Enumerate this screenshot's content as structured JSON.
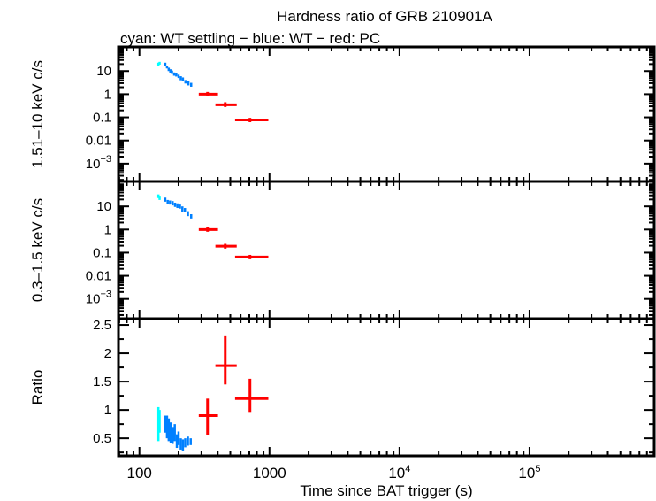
{
  "chart_data": {
    "type": "scatter",
    "title": "Hardness ratio of GRB 210901A",
    "subtitle": "cyan: WT settling − blue: WT − red: PC",
    "xlabel": "Time since BAT trigger (s)",
    "xscale": "log",
    "xlim": [
      69,
      910000
    ],
    "xticks": [
      {
        "v": 100,
        "label": "100"
      },
      {
        "v": 1000,
        "label": "1000"
      },
      {
        "v": 10000,
        "label": "10",
        "sup": "4"
      },
      {
        "v": 100000,
        "label": "10",
        "sup": "5"
      }
    ],
    "colors": {
      "wt_settling": "#00ffff",
      "wt": "#0080ff",
      "pc": "#ff0000"
    },
    "panels": [
      {
        "ylabel": "1.51–10 keV c/s",
        "yscale": "log",
        "ylim": [
          0.00017,
          110
        ],
        "yticks": [
          {
            "v": 10,
            "label": "10"
          },
          {
            "v": 1,
            "label": "1"
          },
          {
            "v": 0.1,
            "label": "0.1"
          },
          {
            "v": 0.01,
            "label": "0.01"
          },
          {
            "v": 0.001,
            "label": "10",
            "sup": "−3"
          }
        ],
        "series": [
          {
            "kind": "wt_settling",
            "points": [
              [
                140,
                20,
                0.06,
                3
              ],
              [
                143,
                22,
                0.06,
                3
              ]
            ]
          },
          {
            "kind": "wt",
            "points": [
              [
                158,
                20,
                0.03,
                3
              ],
              [
                163,
                15,
                0.03,
                2
              ],
              [
                168,
                12,
                0.03,
                2
              ],
              [
                173,
                10,
                0.03,
                2
              ],
              [
                178,
                9,
                0.03,
                1.5
              ],
              [
                185,
                7.5,
                0.03,
                1.2
              ],
              [
                192,
                7,
                0.03,
                1.2
              ],
              [
                200,
                6,
                0.03,
                1
              ],
              [
                208,
                5,
                0.03,
                1
              ],
              [
                216,
                4.5,
                0.03,
                0.8
              ],
              [
                226,
                3.5,
                0.03,
                0.6
              ],
              [
                238,
                3,
                0.03,
                0.6
              ],
              [
                250,
                2.6,
                0.03,
                0.5
              ]
            ]
          },
          {
            "kind": "pc",
            "points": [
              [
                334,
                1.0,
                [
                  286,
                  402
                ],
                [
                  0.8,
                  1.25
                ]
              ],
              [
                457,
                0.35,
                [
                  384,
                  560
                ],
                [
                  0.28,
                  0.45
                ]
              ],
              [
                708,
                0.077,
                [
                  544,
                  980
                ],
                [
                  0.062,
                  0.095
                ]
              ]
            ]
          }
        ]
      },
      {
        "ylabel": "0.3–1.5 keV c/s",
        "yscale": "log",
        "ylim": [
          0.00014,
          120
        ],
        "yticks": [
          {
            "v": 10,
            "label": "10"
          },
          {
            "v": 1,
            "label": "1"
          },
          {
            "v": 0.1,
            "label": "0.1"
          },
          {
            "v": 0.01,
            "label": "0.01"
          },
          {
            "v": 0.001,
            "label": "10",
            "sup": "−3"
          }
        ],
        "series": [
          {
            "kind": "wt_settling",
            "points": [
              [
                140,
                28,
                0.06,
                5
              ],
              [
                143,
                24,
                0.06,
                5
              ]
            ]
          },
          {
            "kind": "wt",
            "points": [
              [
                158,
                20,
                0.03,
                4
              ],
              [
                165,
                16,
                0.03,
                3
              ],
              [
                172,
                15,
                0.03,
                3
              ],
              [
                180,
                14,
                0.03,
                3
              ],
              [
                188,
                12,
                0.03,
                2.5
              ],
              [
                196,
                11,
                0.03,
                2.5
              ],
              [
                205,
                10,
                0.03,
                2
              ],
              [
                214,
                8,
                0.03,
                2
              ],
              [
                224,
                7,
                0.03,
                1.5
              ],
              [
                236,
                5,
                0.03,
                1.2
              ],
              [
                250,
                3.8,
                0.03,
                0.8
              ]
            ]
          },
          {
            "kind": "pc",
            "points": [
              [
                334,
                1.0,
                [
                  286,
                  402
                ],
                [
                  0.8,
                  1.25
                ]
              ],
              [
                457,
                0.19,
                [
                  384,
                  560
                ],
                [
                  0.15,
                  0.24
                ]
              ],
              [
                708,
                0.065,
                [
                  544,
                  980
                ],
                [
                  0.052,
                  0.08
                ]
              ]
            ]
          }
        ]
      },
      {
        "ylabel": "Ratio",
        "yscale": "linear",
        "ylim": [
          0.19,
          2.61
        ],
        "yticks": [
          {
            "v": 2.5,
            "label": "2.5"
          },
          {
            "v": 2,
            "label": "2"
          },
          {
            "v": 1.5,
            "label": "1.5"
          },
          {
            "v": 1,
            "label": "1"
          },
          {
            "v": 0.5,
            "label": "0.5"
          }
        ],
        "series": [
          {
            "kind": "wt_settling",
            "points": [
              [
                140,
                0.75,
                0.02,
                0.3
              ],
              [
                143,
                0.8,
                0.02,
                0.2
              ]
            ]
          },
          {
            "kind": "wt",
            "points": [
              [
                158,
                0.75,
                0.02,
                0.15
              ],
              [
                163,
                0.7,
                0.02,
                0.2
              ],
              [
                168,
                0.65,
                0.02,
                0.2
              ],
              [
                174,
                0.6,
                0.02,
                0.18
              ],
              [
                180,
                0.55,
                0.02,
                0.15
              ],
              [
                187,
                0.6,
                0.02,
                0.15
              ],
              [
                194,
                0.45,
                0.02,
                0.12
              ],
              [
                200,
                0.5,
                0.02,
                0.12
              ],
              [
                208,
                0.4,
                0.02,
                0.1
              ],
              [
                216,
                0.38,
                0.02,
                0.1
              ],
              [
                225,
                0.42,
                0.02,
                0.08
              ],
              [
                236,
                0.45,
                0.02,
                0.08
              ],
              [
                248,
                0.44,
                0.02,
                0.06
              ]
            ]
          },
          {
            "kind": "pc",
            "points": [
              [
                334,
                0.9,
                [
                  286,
                  402
                ],
                [
                  0.55,
                  1.2
                ]
              ],
              [
                457,
                1.78,
                [
                  384,
                  560
                ],
                [
                  1.45,
                  2.3
                ]
              ],
              [
                708,
                1.2,
                [
                  544,
                  980
                ],
                [
                  0.95,
                  1.55
                ]
              ]
            ]
          }
        ]
      }
    ]
  }
}
